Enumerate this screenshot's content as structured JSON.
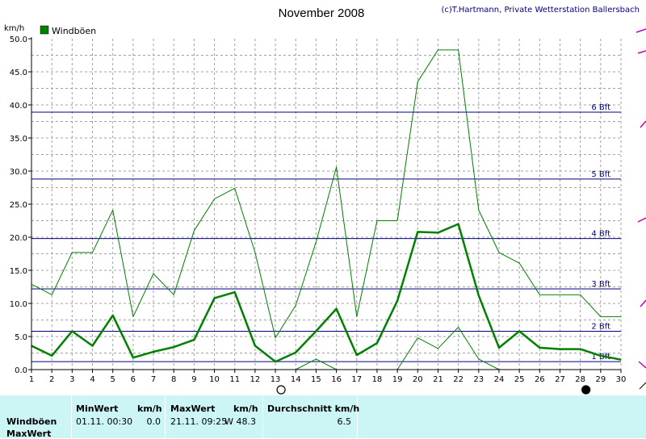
{
  "header": {
    "title": "November 2008",
    "credit": "(c)T.Hartmann, Private Wetterstation Ballersbach"
  },
  "chart_data": {
    "type": "line",
    "title": "November 2008",
    "ylabel": "km/h",
    "xlabel": "",
    "ylim": [
      0,
      50
    ],
    "xlim": [
      1,
      30
    ],
    "grid": true,
    "legend_placement": "top-left",
    "legend": [
      {
        "name": "Windböen",
        "color": "#008000"
      }
    ],
    "x": [
      1,
      2,
      3,
      4,
      5,
      6,
      7,
      8,
      9,
      10,
      11,
      12,
      13,
      14,
      15,
      16,
      17,
      18,
      19,
      20,
      21,
      22,
      23,
      24,
      25,
      26,
      27,
      28,
      29,
      30
    ],
    "x_ticks": [
      "1",
      "2",
      "3",
      "4",
      "5",
      "6",
      "7",
      "8",
      "9",
      "10",
      "11",
      "12",
      "13",
      "14",
      "15",
      "16",
      "17",
      "18",
      "19",
      "20",
      "21",
      "22",
      "23",
      "24",
      "25",
      "26",
      "27",
      "28",
      "29",
      "30"
    ],
    "y_ticks": [
      "0.0",
      "5.0",
      "10.0",
      "15.0",
      "20.0",
      "25.0",
      "30.0",
      "35.0",
      "40.0",
      "45.0",
      "50.0"
    ],
    "y_tick_values": [
      0,
      5,
      10,
      15,
      20,
      25,
      30,
      35,
      40,
      45,
      50
    ],
    "series": [
      {
        "role": "max",
        "color": "#008000",
        "width": 1,
        "values": [
          12.9,
          11.3,
          17.7,
          17.7,
          24.1,
          8.0,
          14.5,
          11.3,
          21.0,
          25.8,
          27.4,
          17.7,
          4.8,
          9.7,
          19.3,
          30.6,
          8.0,
          22.5,
          22.5,
          43.5,
          48.3,
          48.3,
          24.1,
          17.7,
          16.1,
          11.3,
          11.3,
          11.3,
          8.0,
          8.0
        ]
      },
      {
        "role": "average",
        "color": "#008000",
        "width": 2.5,
        "values": [
          3.6,
          2.1,
          5.8,
          3.6,
          8.2,
          1.8,
          2.7,
          3.4,
          4.5,
          10.8,
          11.7,
          3.6,
          1.2,
          2.6,
          5.8,
          9.2,
          2.2,
          4.0,
          10.4,
          20.8,
          20.7,
          22.0,
          11.2,
          3.3,
          5.8,
          3.3,
          3.1,
          3.1,
          2.1,
          1.5
        ]
      },
      {
        "role": "min",
        "color": "#008000",
        "width": 1,
        "values": [
          null,
          null,
          null,
          null,
          null,
          null,
          null,
          null,
          null,
          null,
          null,
          null,
          null,
          0.0,
          1.6,
          0.0,
          null,
          null,
          0.0,
          4.8,
          3.2,
          6.4,
          1.6,
          0.0,
          null,
          null,
          null,
          null,
          null,
          null
        ]
      }
    ],
    "reference_lines": [
      {
        "value": 1.2,
        "label": "1 Bft"
      },
      {
        "value": 5.8,
        "label": "2 Bft"
      },
      {
        "value": 12.2,
        "label": "3 Bft"
      },
      {
        "value": 19.8,
        "label": "4 Bft"
      },
      {
        "value": 28.8,
        "label": "5 Bft"
      },
      {
        "value": 38.9,
        "label": "6 Bft"
      }
    ],
    "moon_phases": [
      {
        "day": 13,
        "phase": "full-moon"
      },
      {
        "day": 28,
        "phase": "new-moon"
      }
    ]
  },
  "table": {
    "headers": {
      "min": "MinWert",
      "min_unit": "km/h",
      "max": "MaxWert",
      "max_unit": "km/h",
      "avg": "Durchschnitt km/h"
    },
    "rows": [
      {
        "label": "Windböen",
        "min_time": "01.11.  00:30",
        "min_value": "0.0",
        "max_time": "21.11.  09:25",
        "max_value": "W 48.3",
        "avg_value": "6.5"
      },
      {
        "label": "MaxWert"
      }
    ]
  },
  "colors": {
    "series": "#008000",
    "bft_lines": "#000080",
    "grid": "#a0a0a0",
    "panel": "#ccf5f5",
    "edge_marks": "#c000c0"
  }
}
